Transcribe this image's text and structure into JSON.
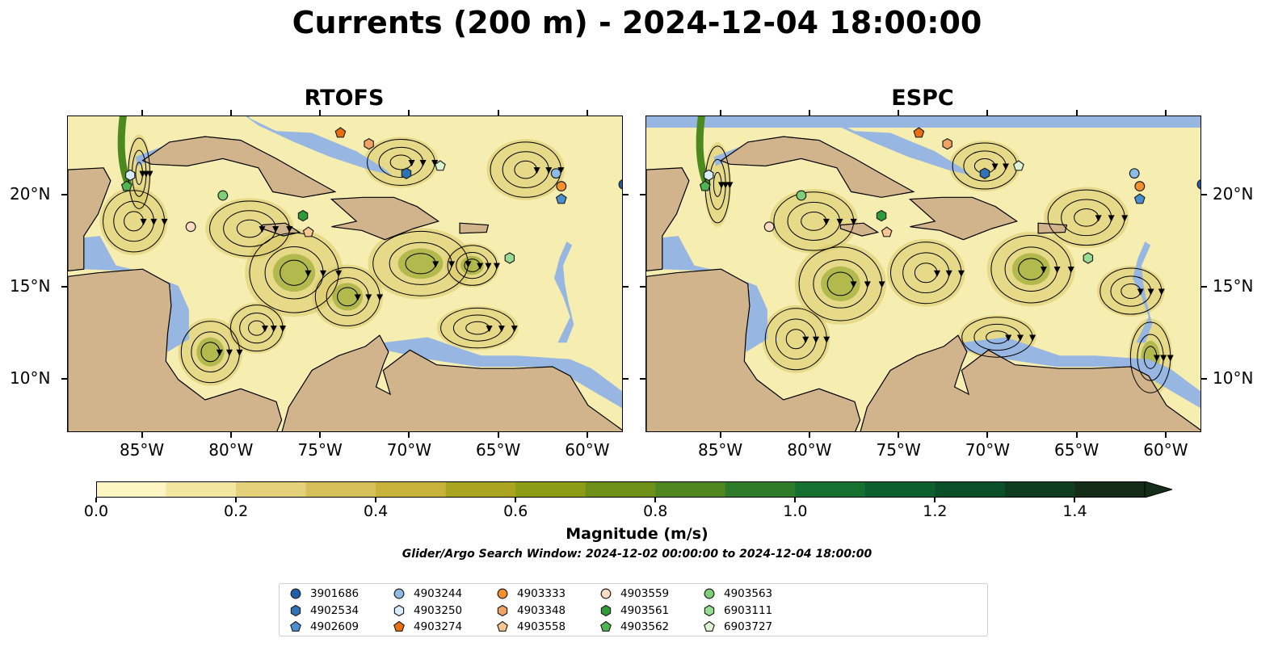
{
  "title": "Currents (200 m) - 2024-12-04 18:00:00",
  "panels": [
    {
      "title": "RTOFS"
    },
    {
      "title": "ESPC"
    }
  ],
  "axes": {
    "lon_labels": [
      "85°W",
      "80°W",
      "75°W",
      "70°W",
      "65°W",
      "60°W"
    ],
    "lon_values": [
      -85,
      -80,
      -75,
      -70,
      -65,
      -60
    ],
    "lat_labels": [
      "20°N",
      "15°N",
      "10°N"
    ],
    "lat_values": [
      20,
      15,
      10
    ],
    "lon_range": [
      -89.2,
      -58
    ],
    "lat_range": [
      7.1,
      24.3
    ]
  },
  "colorbar": {
    "title": "Magnitude (m/s)",
    "subtitle": "Glider/Argo Search Window: 2024-12-02 00:00:00 to 2024-12-04 18:00:00",
    "tick_labels": [
      "0.0",
      "0.2",
      "0.4",
      "0.6",
      "0.8",
      "1.0",
      "1.2",
      "1.4"
    ],
    "tick_values": [
      0,
      0.2,
      0.4,
      0.6,
      0.8,
      1.0,
      1.2,
      1.4
    ],
    "range": [
      0,
      1.5
    ],
    "extend": "max",
    "colors": [
      "#fdf6c3",
      "#f3e6a0",
      "#e4d17a",
      "#d6c05a",
      "#c8b23c",
      "#aaa520",
      "#8c9d15",
      "#6e9018",
      "#4f8720",
      "#2e7b2a",
      "#167030",
      "#0d5f2e",
      "#0b4f28",
      "#0e3d20",
      "#142d18"
    ]
  },
  "map_colors": {
    "land": "#d2b48c",
    "shallow": "#97b6e1",
    "ocean_low": "#f6eeb0",
    "ocean_mid": "#d9c968",
    "ocean_high": "#8fa326",
    "ocean_peak": "#4c8a20"
  },
  "floats": [
    {
      "id": "3901686",
      "marker": "circle",
      "color": "#1f5fa8",
      "lon": -58.0,
      "lat": 20.6
    },
    {
      "id": "4902534",
      "marker": "hexagon",
      "color": "#2e72b8",
      "lon": -70.2,
      "lat": 21.2
    },
    {
      "id": "4902609",
      "marker": "pentagon",
      "color": "#4a8fd0",
      "lon": -61.5,
      "lat": 19.8
    },
    {
      "id": "4903244",
      "marker": "circle",
      "color": "#8dbbe8",
      "lon": -61.8,
      "lat": 21.2
    },
    {
      "id": "4903250",
      "marker": "hexagon",
      "color": "#d9ecfa",
      "lon": -85.7,
      "lat": 21.1
    },
    {
      "id": "4903274",
      "marker": "pentagon",
      "color": "#ec6f0e",
      "lon": -73.9,
      "lat": 23.4
    },
    {
      "id": "4903333",
      "marker": "circle",
      "color": "#f5902f",
      "lon": -61.5,
      "lat": 20.5
    },
    {
      "id": "4903348",
      "marker": "hexagon",
      "color": "#f1a366",
      "lon": -72.3,
      "lat": 22.8
    },
    {
      "id": "4903558",
      "marker": "pentagon",
      "color": "#f8c690",
      "lon": -75.7,
      "lat": 18.0
    },
    {
      "id": "4903559",
      "marker": "circle",
      "color": "#fbdcc4",
      "lon": -82.3,
      "lat": 18.3
    },
    {
      "id": "4903561",
      "marker": "hexagon",
      "color": "#2e9a38",
      "lon": -76.0,
      "lat": 18.9
    },
    {
      "id": "4903562",
      "marker": "pentagon",
      "color": "#4fb550",
      "lon": -85.9,
      "lat": 20.5
    },
    {
      "id": "4903563",
      "marker": "circle",
      "color": "#7ecf78",
      "lon": -80.5,
      "lat": 20.0
    },
    {
      "id": "6903111",
      "marker": "hexagon",
      "color": "#98dd94",
      "lon": -64.4,
      "lat": 16.6
    },
    {
      "id": "6903727",
      "marker": "pentagon",
      "color": "#ddf6d2",
      "lon": -68.3,
      "lat": 21.6
    }
  ],
  "legend_ids": [
    "3901686",
    "4902534",
    "4902609",
    "4903244",
    "4903250",
    "4903274",
    "4903333",
    "4903348",
    "4903558",
    "4903559",
    "4903561",
    "4903562",
    "4903563",
    "6903111",
    "6903727"
  ]
}
